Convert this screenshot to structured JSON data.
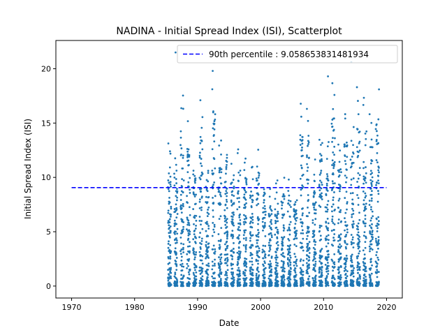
{
  "chart_data": {
    "type": "scatter",
    "title": "NADINA - Initial Spread Index (ISI), Scatterplot",
    "xlabel": "Date",
    "ylabel": "Initial Spread Index (ISI)",
    "xlim": [
      1967.5,
      2022.5
    ],
    "ylim": [
      -1.1,
      22.6
    ],
    "x_ticks": [
      1970,
      1980,
      1990,
      2000,
      2010,
      2020
    ],
    "y_ticks": [
      0,
      5,
      10,
      15,
      20
    ],
    "grid": false,
    "legend_position": "upper-right",
    "series": [
      {
        "kind": "points",
        "color": "#1f77b4",
        "season_start_year": 1985,
        "season_end_year": 2018,
        "typical_season_max": [
          13.7,
          12.8,
          17.7,
          15.5,
          12.1,
          17.3,
          12.2,
          19.8,
          13.6,
          14.4,
          12.0,
          13.0,
          12.6,
          11.1,
          12.7,
          10.7,
          9.0,
          9.8,
          10.4,
          9.9,
          9.6,
          17.2,
          16.6,
          12.0,
          15.2,
          13.3,
          19.3,
          13.5,
          16.4,
          15.2,
          18.3,
          17.5,
          16.2,
          18.1
        ],
        "notable_points": [
          {
            "x": 1986.5,
            "y": 21.5
          },
          {
            "x": 1992.4,
            "y": 19.8
          },
          {
            "x": 2010.7,
            "y": 19.3
          },
          {
            "x": 2014.4,
            "y": 20.6
          },
          {
            "x": 2015.3,
            "y": 18.3
          },
          {
            "x": 2018.8,
            "y": 18.1
          }
        ]
      },
      {
        "kind": "hline",
        "name": "90th percentile : 9.058653831481934",
        "y": 9.058653831481934,
        "x_range": [
          1970,
          2020
        ],
        "color": "#0000ff",
        "style": "dashed"
      }
    ]
  }
}
